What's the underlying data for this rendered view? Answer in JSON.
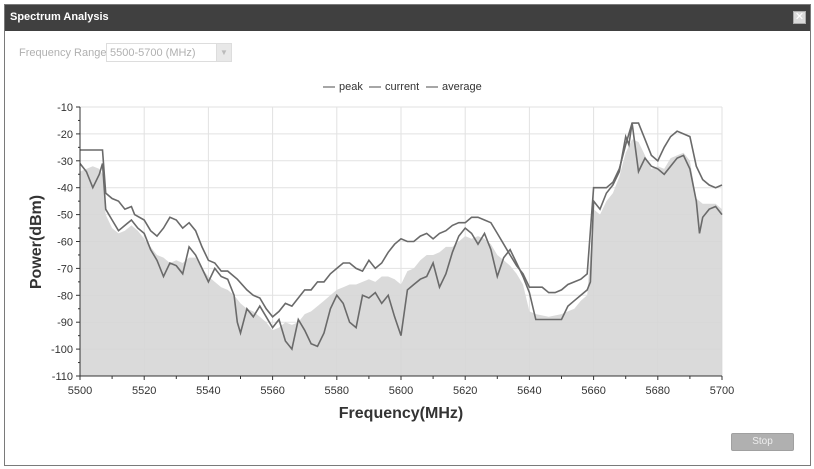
{
  "dialog": {
    "title": "Spectrum Analysis",
    "close_icon": "close-icon",
    "frequency_range_label": "Frequency Range:",
    "frequency_range_value": "5500-5700 (MHz)",
    "stop_label": "Stop"
  },
  "colors": {
    "titlebar": "#404040",
    "line": "#6a6a6a",
    "area": "#d6d6d6",
    "grid": "#e2e2e2"
  },
  "chart_data": {
    "type": "line",
    "title": "",
    "xlabel": "Frequency(MHz)",
    "ylabel": "Power(dBm)",
    "xlim": [
      5500,
      5700
    ],
    "ylim": [
      -110,
      -10
    ],
    "x_ticks": [
      5500,
      5520,
      5540,
      5560,
      5580,
      5600,
      5620,
      5640,
      5660,
      5680,
      5700
    ],
    "y_ticks": [
      -10,
      -20,
      -30,
      -40,
      -50,
      -60,
      -70,
      -80,
      -90,
      -100,
      -110
    ],
    "grid": true,
    "legend_position": "top",
    "legend": [
      "peak",
      "current",
      "average"
    ],
    "series": [
      {
        "name": "peak",
        "style": "line",
        "points": [
          [
            5500,
            -26
          ],
          [
            5504,
            -26
          ],
          [
            5507,
            -26
          ],
          [
            5508,
            -42
          ],
          [
            5510,
            -44
          ],
          [
            5512,
            -45
          ],
          [
            5514,
            -48
          ],
          [
            5516,
            -47
          ],
          [
            5517,
            -50
          ],
          [
            5520,
            -52
          ],
          [
            5522,
            -56
          ],
          [
            5524,
            -58
          ],
          [
            5526,
            -55
          ],
          [
            5528,
            -51
          ],
          [
            5530,
            -52
          ],
          [
            5532,
            -55
          ],
          [
            5534,
            -53
          ],
          [
            5536,
            -56
          ],
          [
            5538,
            -62
          ],
          [
            5540,
            -67
          ],
          [
            5542,
            -68
          ],
          [
            5544,
            -71
          ],
          [
            5546,
            -71
          ],
          [
            5548,
            -73
          ],
          [
            5549,
            -74
          ],
          [
            5552,
            -78
          ],
          [
            5554,
            -80
          ],
          [
            5556,
            -81
          ],
          [
            5558,
            -85
          ],
          [
            5560,
            -88
          ],
          [
            5562,
            -86
          ],
          [
            5564,
            -83
          ],
          [
            5566,
            -84
          ],
          [
            5568,
            -81
          ],
          [
            5570,
            -78
          ],
          [
            5572,
            -78
          ],
          [
            5574,
            -75
          ],
          [
            5576,
            -75
          ],
          [
            5578,
            -72
          ],
          [
            5580,
            -70
          ],
          [
            5582,
            -68
          ],
          [
            5584,
            -68
          ],
          [
            5586,
            -70
          ],
          [
            5588,
            -71
          ],
          [
            5590,
            -67
          ],
          [
            5592,
            -70
          ],
          [
            5594,
            -68
          ],
          [
            5596,
            -64
          ],
          [
            5598,
            -61
          ],
          [
            5600,
            -59
          ],
          [
            5602,
            -60
          ],
          [
            5604,
            -60
          ],
          [
            5606,
            -58
          ],
          [
            5608,
            -57
          ],
          [
            5610,
            -59
          ],
          [
            5612,
            -57
          ],
          [
            5614,
            -56
          ],
          [
            5616,
            -54
          ],
          [
            5618,
            -53
          ],
          [
            5620,
            -53
          ],
          [
            5622,
            -51
          ],
          [
            5624,
            -51
          ],
          [
            5626,
            -52
          ],
          [
            5628,
            -53
          ],
          [
            5630,
            -57
          ],
          [
            5632,
            -61
          ],
          [
            5634,
            -65
          ],
          [
            5636,
            -69
          ],
          [
            5638,
            -72
          ],
          [
            5640,
            -77
          ],
          [
            5642,
            -77
          ],
          [
            5644,
            -77
          ],
          [
            5646,
            -79
          ],
          [
            5648,
            -79
          ],
          [
            5650,
            -78
          ],
          [
            5652,
            -76
          ],
          [
            5654,
            -75
          ],
          [
            5656,
            -74
          ],
          [
            5658,
            -72
          ],
          [
            5660,
            -40
          ],
          [
            5664,
            -40
          ],
          [
            5666,
            -38
          ],
          [
            5668,
            -33
          ],
          [
            5670,
            -24
          ],
          [
            5672,
            -16
          ],
          [
            5674,
            -16
          ],
          [
            5676,
            -22
          ],
          [
            5678,
            -28
          ],
          [
            5680,
            -30
          ],
          [
            5682,
            -25
          ],
          [
            5684,
            -21
          ],
          [
            5686,
            -19
          ],
          [
            5688,
            -20
          ],
          [
            5690,
            -21
          ],
          [
            5692,
            -32
          ],
          [
            5694,
            -37
          ],
          [
            5696,
            -39
          ],
          [
            5698,
            -40
          ],
          [
            5700,
            -39
          ]
        ]
      },
      {
        "name": "current",
        "style": "line",
        "points": [
          [
            5500,
            -31
          ],
          [
            5502,
            -34
          ],
          [
            5504,
            -40
          ],
          [
            5506,
            -35
          ],
          [
            5507,
            -31
          ],
          [
            5508,
            -48
          ],
          [
            5510,
            -52
          ],
          [
            5512,
            -56
          ],
          [
            5514,
            -54
          ],
          [
            5516,
            -52
          ],
          [
            5518,
            -55
          ],
          [
            5520,
            -57
          ],
          [
            5522,
            -63
          ],
          [
            5524,
            -67
          ],
          [
            5526,
            -73
          ],
          [
            5528,
            -68
          ],
          [
            5530,
            -69
          ],
          [
            5532,
            -72
          ],
          [
            5534,
            -62
          ],
          [
            5536,
            -65
          ],
          [
            5538,
            -70
          ],
          [
            5540,
            -75
          ],
          [
            5542,
            -70
          ],
          [
            5544,
            -73
          ],
          [
            5546,
            -74
          ],
          [
            5548,
            -80
          ],
          [
            5549,
            -90
          ],
          [
            5550,
            -94
          ],
          [
            5552,
            -85
          ],
          [
            5554,
            -88
          ],
          [
            5556,
            -84
          ],
          [
            5558,
            -88
          ],
          [
            5560,
            -92
          ],
          [
            5562,
            -89
          ],
          [
            5564,
            -97
          ],
          [
            5566,
            -100
          ],
          [
            5568,
            -89
          ],
          [
            5570,
            -93
          ],
          [
            5572,
            -98
          ],
          [
            5574,
            -99
          ],
          [
            5576,
            -94
          ],
          [
            5578,
            -85
          ],
          [
            5580,
            -80
          ],
          [
            5582,
            -83
          ],
          [
            5584,
            -90
          ],
          [
            5586,
            -92
          ],
          [
            5588,
            -80
          ],
          [
            5590,
            -81
          ],
          [
            5592,
            -79
          ],
          [
            5594,
            -83
          ],
          [
            5596,
            -80
          ],
          [
            5598,
            -88
          ],
          [
            5600,
            -95
          ],
          [
            5602,
            -78
          ],
          [
            5604,
            -76
          ],
          [
            5606,
            -74
          ],
          [
            5608,
            -73
          ],
          [
            5610,
            -68
          ],
          [
            5612,
            -77
          ],
          [
            5614,
            -72
          ],
          [
            5616,
            -64
          ],
          [
            5618,
            -58
          ],
          [
            5620,
            -55
          ],
          [
            5622,
            -57
          ],
          [
            5624,
            -61
          ],
          [
            5626,
            -57
          ],
          [
            5628,
            -63
          ],
          [
            5630,
            -73
          ],
          [
            5632,
            -66
          ],
          [
            5634,
            -63
          ],
          [
            5636,
            -68
          ],
          [
            5638,
            -73
          ],
          [
            5640,
            -79
          ],
          [
            5642,
            -89
          ],
          [
            5646,
            -89
          ],
          [
            5650,
            -89
          ],
          [
            5652,
            -84
          ],
          [
            5654,
            -82
          ],
          [
            5656,
            -80
          ],
          [
            5658,
            -78
          ],
          [
            5659,
            -75
          ],
          [
            5660,
            -45
          ],
          [
            5662,
            -48
          ],
          [
            5664,
            -42
          ],
          [
            5666,
            -39
          ],
          [
            5668,
            -34
          ],
          [
            5670,
            -21
          ],
          [
            5671,
            -24
          ],
          [
            5672,
            -16
          ],
          [
            5674,
            -34
          ],
          [
            5676,
            -29
          ],
          [
            5678,
            -32
          ],
          [
            5680,
            -33
          ],
          [
            5682,
            -35
          ],
          [
            5684,
            -32
          ],
          [
            5686,
            -29
          ],
          [
            5688,
            -28
          ],
          [
            5690,
            -33
          ],
          [
            5692,
            -45
          ],
          [
            5693,
            -57
          ],
          [
            5694,
            -51
          ],
          [
            5696,
            -48
          ],
          [
            5698,
            -47
          ],
          [
            5700,
            -50
          ]
        ]
      },
      {
        "name": "average",
        "style": "area",
        "points": [
          [
            5500,
            -34
          ],
          [
            5502,
            -33
          ],
          [
            5504,
            -32
          ],
          [
            5506,
            -33
          ],
          [
            5507,
            -35
          ],
          [
            5508,
            -50
          ],
          [
            5510,
            -55
          ],
          [
            5512,
            -57
          ],
          [
            5514,
            -56
          ],
          [
            5516,
            -54
          ],
          [
            5518,
            -56
          ],
          [
            5520,
            -59
          ],
          [
            5522,
            -62
          ],
          [
            5524,
            -65
          ],
          [
            5526,
            -66
          ],
          [
            5528,
            -68
          ],
          [
            5530,
            -67
          ],
          [
            5532,
            -68
          ],
          [
            5534,
            -66
          ],
          [
            5536,
            -66
          ],
          [
            5538,
            -70
          ],
          [
            5540,
            -73
          ],
          [
            5542,
            -75
          ],
          [
            5544,
            -77
          ],
          [
            5546,
            -78
          ],
          [
            5548,
            -80
          ],
          [
            5550,
            -83
          ],
          [
            5552,
            -85
          ],
          [
            5554,
            -86
          ],
          [
            5556,
            -88
          ],
          [
            5558,
            -90
          ],
          [
            5560,
            -93
          ],
          [
            5562,
            -92
          ],
          [
            5564,
            -90
          ],
          [
            5566,
            -91
          ],
          [
            5568,
            -90
          ],
          [
            5570,
            -87
          ],
          [
            5572,
            -86
          ],
          [
            5574,
            -84
          ],
          [
            5576,
            -82
          ],
          [
            5578,
            -80
          ],
          [
            5580,
            -78
          ],
          [
            5582,
            -77
          ],
          [
            5584,
            -76
          ],
          [
            5586,
            -76
          ],
          [
            5588,
            -75
          ],
          [
            5590,
            -74
          ],
          [
            5592,
            -75
          ],
          [
            5594,
            -73
          ],
          [
            5596,
            -73
          ],
          [
            5598,
            -74
          ],
          [
            5600,
            -76
          ],
          [
            5602,
            -71
          ],
          [
            5604,
            -70
          ],
          [
            5606,
            -67
          ],
          [
            5608,
            -65
          ],
          [
            5610,
            -65
          ],
          [
            5612,
            -64
          ],
          [
            5614,
            -62
          ],
          [
            5616,
            -62
          ],
          [
            5618,
            -60
          ],
          [
            5620,
            -58
          ],
          [
            5622,
            -59
          ],
          [
            5624,
            -58
          ],
          [
            5626,
            -59
          ],
          [
            5628,
            -61
          ],
          [
            5630,
            -65
          ],
          [
            5632,
            -67
          ],
          [
            5634,
            -69
          ],
          [
            5636,
            -72
          ],
          [
            5638,
            -76
          ],
          [
            5640,
            -86
          ],
          [
            5642,
            -87
          ],
          [
            5646,
            -88
          ],
          [
            5650,
            -87
          ],
          [
            5652,
            -86
          ],
          [
            5654,
            -85
          ],
          [
            5656,
            -82
          ],
          [
            5658,
            -80
          ],
          [
            5660,
            -48
          ],
          [
            5662,
            -50
          ],
          [
            5664,
            -45
          ],
          [
            5666,
            -42
          ],
          [
            5668,
            -36
          ],
          [
            5670,
            -27
          ],
          [
            5672,
            -22
          ],
          [
            5674,
            -23
          ],
          [
            5676,
            -28
          ],
          [
            5678,
            -33
          ],
          [
            5680,
            -32
          ],
          [
            5682,
            -33
          ],
          [
            5684,
            -29
          ],
          [
            5686,
            -28
          ],
          [
            5688,
            -27
          ],
          [
            5690,
            -30
          ],
          [
            5692,
            -44
          ],
          [
            5694,
            -46
          ],
          [
            5696,
            -46
          ],
          [
            5698,
            -46
          ],
          [
            5700,
            -48
          ]
        ]
      }
    ]
  }
}
